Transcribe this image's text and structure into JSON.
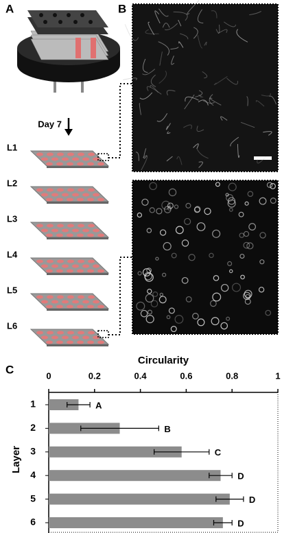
{
  "panels": {
    "a": "A",
    "b": "B",
    "c": "C"
  },
  "day_label": "Day 7",
  "layers": [
    "L1",
    "L2",
    "L3",
    "L4",
    "L5",
    "L6"
  ],
  "chart_data": {
    "type": "bar",
    "orientation": "horizontal",
    "xlabel": "Circularity",
    "ylabel": "Layer",
    "categories": [
      "1",
      "2",
      "3",
      "4",
      "5",
      "6"
    ],
    "values": [
      0.13,
      0.31,
      0.58,
      0.75,
      0.79,
      0.76
    ],
    "errors": [
      0.05,
      0.17,
      0.12,
      0.05,
      0.06,
      0.04
    ],
    "annotations": [
      "A",
      "B",
      "C",
      "D",
      "D",
      "D"
    ],
    "color": "#8c8c8c",
    "xlim": [
      0,
      1
    ],
    "xticks": [
      0,
      0.2,
      0.4,
      0.6,
      0.8,
      1
    ]
  }
}
